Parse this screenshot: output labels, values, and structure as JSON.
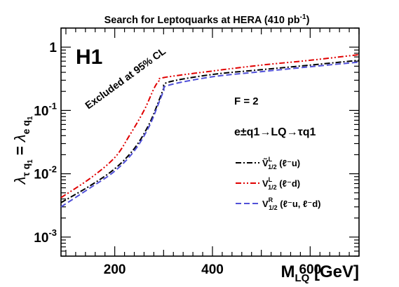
{
  "chart_data": {
    "type": "line",
    "title": "Search for Leptoquarks at HERA (410 pb",
    "title_sup": "-1",
    "title_end": ")",
    "xlabel_main": "M",
    "xlabel_sub": "LQ",
    "xlabel_unit": " [GeV]",
    "ylabel": "λτ q1 = λe q1",
    "x_scale": "linear",
    "y_scale": "log",
    "xlim": [
      90,
      700
    ],
    "ylim": [
      0.0005,
      2
    ],
    "x_ticks": [
      200,
      400,
      600
    ],
    "y_ticks": [
      {
        "value": 0.001,
        "base": "10",
        "exp": "-3"
      },
      {
        "value": 0.01,
        "base": "10",
        "exp": "-2"
      },
      {
        "value": 0.1,
        "base": "10",
        "exp": "-1"
      },
      {
        "value": 1,
        "base": "1",
        "exp": ""
      }
    ],
    "annotations": {
      "experiment": "H1",
      "excluded": "Excluded at 95% CL",
      "fermion_number": "F = 2",
      "process": "e±q1→LQ→τq1"
    },
    "series": [
      {
        "name": "Ṽ1/2L (ℓ⁻u)",
        "legend_main": "Ṽ",
        "legend_sup": "L",
        "legend_sub": "1/2",
        "legend_tail": " (ℓ⁻u)",
        "color": "#000000",
        "dash": "8,3,2,3",
        "x": [
          90,
          150,
          200,
          240,
          270,
          290,
          300,
          310,
          400,
          500,
          600,
          700
        ],
        "y": [
          0.0035,
          0.0065,
          0.012,
          0.025,
          0.06,
          0.14,
          0.22,
          0.28,
          0.37,
          0.44,
          0.52,
          0.62
        ]
      },
      {
        "name": "V1/2L (ℓ⁻d)",
        "legend_main": "V",
        "legend_sup": "L",
        "legend_sub": "1/2",
        "legend_tail": " (ℓ⁻d)",
        "color": "#e00000",
        "dash": "8,3,2,3,2,3",
        "x": [
          90,
          150,
          200,
          230,
          260,
          280,
          290,
          300,
          400,
          500,
          600,
          700
        ],
        "y": [
          0.0042,
          0.0085,
          0.018,
          0.04,
          0.1,
          0.22,
          0.29,
          0.33,
          0.42,
          0.52,
          0.62,
          0.76
        ]
      },
      {
        "name": "V1/2R (ℓ⁻u, ℓ⁻d)",
        "legend_main": "V",
        "legend_sup": "R",
        "legend_sub": "1/2",
        "legend_tail": " (ℓ⁻u, ℓ⁻d)",
        "color": "#5050d8",
        "dash": "8,4",
        "x": [
          90,
          150,
          200,
          240,
          270,
          290,
          300,
          310,
          400,
          500,
          600,
          700
        ],
        "y": [
          0.003,
          0.006,
          0.011,
          0.023,
          0.055,
          0.13,
          0.2,
          0.25,
          0.34,
          0.41,
          0.49,
          0.58
        ]
      }
    ]
  }
}
